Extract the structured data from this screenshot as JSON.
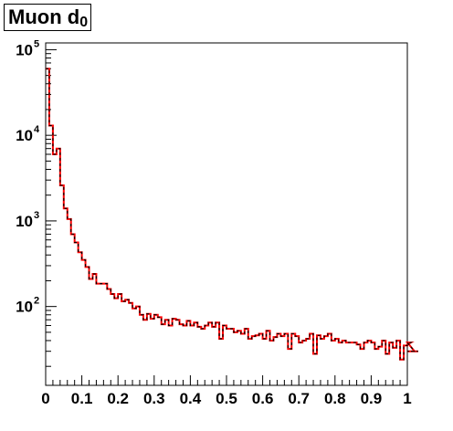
{
  "chart_data": {
    "type": "line",
    "title": "Muon d",
    "title_subscript": "0",
    "xlabel": "",
    "ylabel": "",
    "xlim": [
      0,
      1
    ],
    "ylim": [
      12,
      120000
    ],
    "y_log_scale": true,
    "grid": false,
    "x_ticks": [
      "0",
      "0.1",
      "0.2",
      "0.3",
      "0.4",
      "0.5",
      "0.6",
      "0.7",
      "0.8",
      "0.9",
      "1"
    ],
    "y_ticks": [
      {
        "base": "10",
        "exp": "2",
        "value": 100
      },
      {
        "base": "10",
        "exp": "3",
        "value": 1000
      },
      {
        "base": "10",
        "exp": "4",
        "value": 10000
      },
      {
        "base": "10",
        "exp": "5",
        "value": 100000
      }
    ],
    "bin_width": 0.01,
    "series": [
      {
        "color": "#ff0000",
        "style": "solid",
        "values": [
          60000,
          13000,
          6000,
          7000,
          2600,
          1400,
          1050,
          700,
          560,
          430,
          350,
          290,
          210,
          240,
          185,
          185,
          185,
          160,
          140,
          125,
          140,
          115,
          120,
          110,
          95,
          100,
          80,
          70,
          82,
          72,
          80,
          75,
          62,
          70,
          60,
          72,
          70,
          62,
          60,
          68,
          60,
          65,
          58,
          55,
          60,
          65,
          58,
          65,
          42,
          60,
          55,
          55,
          50,
          52,
          48,
          55,
          42,
          45,
          46,
          48,
          42,
          52,
          40,
          44,
          48,
          45,
          48,
          32,
          48,
          45,
          38,
          40,
          42,
          48,
          28,
          46,
          42,
          45,
          48,
          40,
          42,
          38,
          40,
          38,
          38,
          38,
          36,
          32,
          38,
          40,
          38,
          32,
          34,
          40,
          28,
          38,
          33,
          40,
          24,
          35,
          36,
          38,
          30,
          30
        ]
      },
      {
        "color": "#000000",
        "style": "dashed",
        "values": [
          60000,
          13000,
          6000,
          7000,
          2600,
          1400,
          1050,
          700,
          560,
          430,
          350,
          290,
          210,
          240,
          185,
          185,
          185,
          160,
          140,
          125,
          140,
          115,
          120,
          110,
          95,
          100,
          80,
          70,
          82,
          72,
          80,
          75,
          62,
          70,
          60,
          72,
          70,
          62,
          60,
          68,
          60,
          65,
          58,
          55,
          60,
          65,
          58,
          65,
          42,
          60,
          55,
          55,
          50,
          52,
          48,
          55,
          42,
          45,
          46,
          48,
          42,
          52,
          40,
          44,
          48,
          45,
          48,
          32,
          48,
          45,
          38,
          40,
          42,
          48,
          28,
          46,
          42,
          45,
          48,
          40,
          42,
          38,
          40,
          38,
          38,
          38,
          36,
          32,
          38,
          40,
          38,
          32,
          34,
          40,
          28,
          38,
          33,
          40,
          24,
          35,
          36,
          38,
          30,
          30
        ]
      }
    ]
  }
}
